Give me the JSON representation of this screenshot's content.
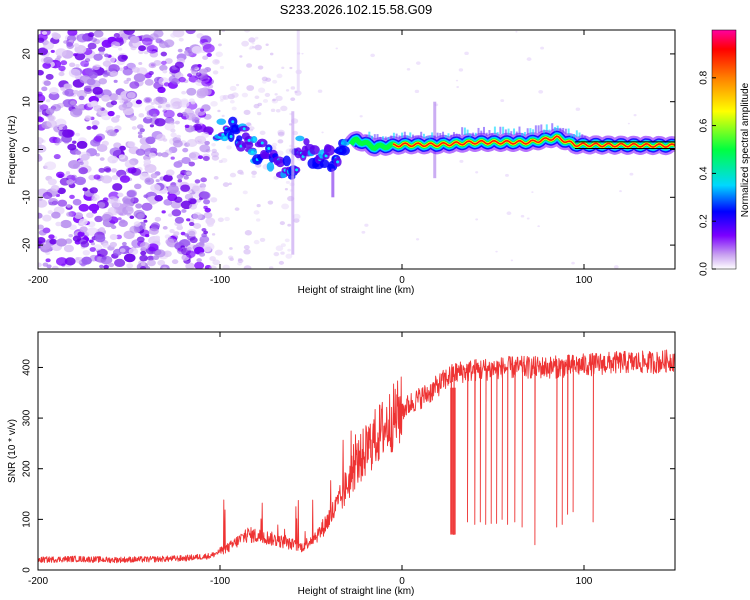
{
  "title": "S233.2026.102.15.58.G09",
  "chart_data": [
    {
      "type": "heatmap",
      "xlabel": "Height of straight line (km)",
      "ylabel": "Frequency (Hz)",
      "xlim": [
        -200,
        150
      ],
      "ylim": [
        -25,
        25
      ],
      "xticks": [
        -200,
        -100,
        0,
        100
      ],
      "yticks": [
        -20,
        -10,
        0,
        10,
        20
      ],
      "colorbar": {
        "label": "Normalized spectral amplitude",
        "range": [
          0,
          1
        ],
        "ticks": [
          0,
          0.2,
          0.4,
          0.6,
          0.8
        ],
        "tick_labels": [
          "0.0",
          "0.2",
          "0.4",
          "0.6",
          "0.8"
        ],
        "colors": [
          "#ffffff",
          "#c8a0f0",
          "#7b00ff",
          "#0000ff",
          "#00d8ff",
          "#00ff40",
          "#ffff00",
          "#ff8000",
          "#ff0000",
          "#ff00a0"
        ]
      },
      "ridge": [
        {
          "x": -100,
          "y": 5
        },
        {
          "x": -90,
          "y": 3
        },
        {
          "x": -80,
          "y": 0
        },
        {
          "x": -70,
          "y": -2
        },
        {
          "x": -60,
          "y": -4
        },
        {
          "x": -55,
          "y": 1
        },
        {
          "x": -45,
          "y": -2
        },
        {
          "x": -35,
          "y": -1
        },
        {
          "x": -25,
          "y": 2
        },
        {
          "x": -15,
          "y": 0.5
        },
        {
          "x": 0,
          "y": 1
        },
        {
          "x": 20,
          "y": 1
        },
        {
          "x": 40,
          "y": 1.5
        },
        {
          "x": 70,
          "y": 1.5
        },
        {
          "x": 85,
          "y": 2.5
        },
        {
          "x": 95,
          "y": 1
        },
        {
          "x": 150,
          "y": 0.8
        }
      ]
    },
    {
      "type": "line",
      "xlabel": "Height of straight line (km)",
      "ylabel": "SNR (10 * v/v)",
      "xlim": [
        -200,
        150
      ],
      "ylim": [
        0,
        470
      ],
      "xticks": [
        -200,
        -100,
        0,
        100
      ],
      "yticks": [
        0,
        100,
        200,
        300,
        400
      ],
      "color": "#ee3333",
      "series": [
        {
          "name": "SNR",
          "x": [
            -200,
            -180,
            -160,
            -140,
            -120,
            -105,
            -95,
            -85,
            -75,
            -65,
            -55,
            -45,
            -35,
            -25,
            -15,
            -5,
            5,
            15,
            25,
            30,
            40,
            60,
            80,
            100,
            120,
            140,
            150
          ],
          "y": [
            20,
            22,
            20,
            21,
            23,
            28,
            45,
            70,
            65,
            55,
            45,
            75,
            130,
            210,
            260,
            300,
            330,
            350,
            380,
            390,
            395,
            400,
            400,
            405,
            410,
            410,
            415
          ]
        }
      ],
      "dropouts": [
        {
          "x": 27,
          "y": 75
        },
        {
          "x": 28.5,
          "y": 70
        },
        {
          "x": 36,
          "y": 95
        },
        {
          "x": 40,
          "y": 90
        },
        {
          "x": 43,
          "y": 95
        },
        {
          "x": 46,
          "y": 90
        },
        {
          "x": 49,
          "y": 92
        },
        {
          "x": 52,
          "y": 92
        },
        {
          "x": 55,
          "y": 100
        },
        {
          "x": 58,
          "y": 90
        },
        {
          "x": 62,
          "y": 95
        },
        {
          "x": 66,
          "y": 85
        },
        {
          "x": 73,
          "y": 50
        },
        {
          "x": 85,
          "y": 85
        },
        {
          "x": 88,
          "y": 90
        },
        {
          "x": 91,
          "y": 110
        },
        {
          "x": 94,
          "y": 115
        },
        {
          "x": 105,
          "y": 95
        }
      ]
    }
  ]
}
